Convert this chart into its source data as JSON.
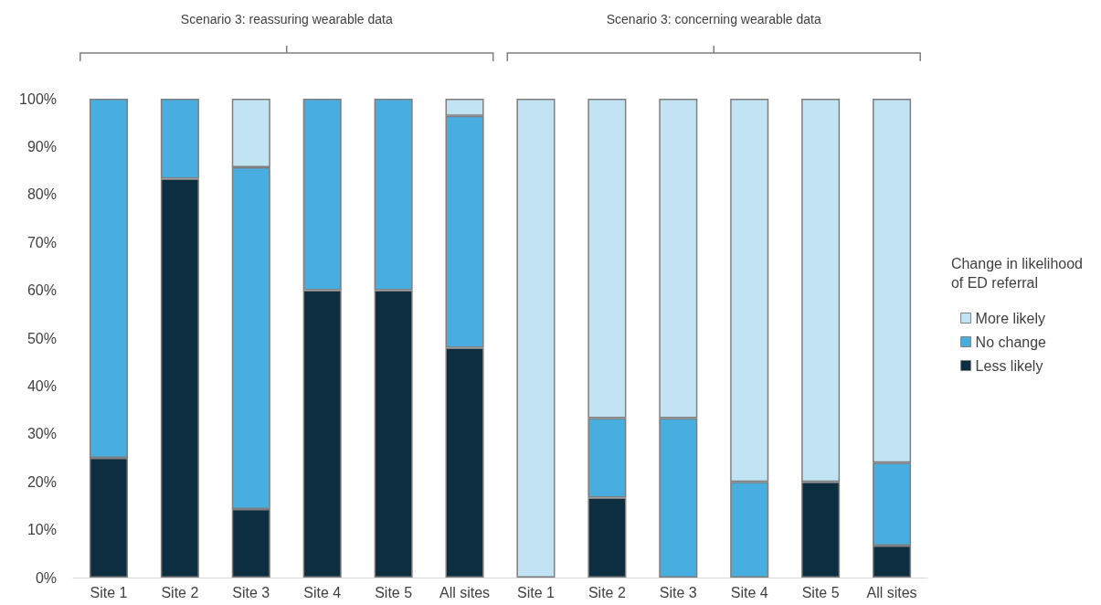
{
  "chart_data": {
    "type": "bar",
    "stacked": true,
    "categories": [
      "Site 1",
      "Site 2",
      "Site 3",
      "Site 4",
      "Site 5",
      "All sites",
      "Site 1",
      "Site 2",
      "Site 3",
      "Site 4",
      "Site 5",
      "All sites"
    ],
    "series": [
      {
        "name": "Less likely",
        "color": "#0d2d40",
        "values": [
          25,
          83.3,
          14.3,
          60,
          60,
          48,
          0,
          16.7,
          0,
          0,
          20,
          6.7
        ]
      },
      {
        "name": "No change",
        "color": "#48aee0",
        "values": [
          75,
          16.7,
          71.4,
          40,
          40,
          48.4,
          0,
          16.6,
          33.3,
          20,
          0,
          17.3
        ]
      },
      {
        "name": "More likely",
        "color": "#c2e3f4",
        "values": [
          0,
          0,
          14.3,
          0,
          0,
          3.6,
          100,
          66.7,
          66.7,
          80,
          80,
          76
        ]
      }
    ],
    "ylim": [
      0,
      100
    ],
    "yticks": [
      {
        "value": 0,
        "label": "0%"
      },
      {
        "value": 10,
        "label": "10%"
      },
      {
        "value": 20,
        "label": "20%"
      },
      {
        "value": 30,
        "label": "30%"
      },
      {
        "value": 40,
        "label": "40%"
      },
      {
        "value": 50,
        "label": "50%"
      },
      {
        "value": 60,
        "label": "60%"
      },
      {
        "value": 70,
        "label": "70%"
      },
      {
        "value": 80,
        "label": "80%"
      },
      {
        "value": 90,
        "label": "90%"
      },
      {
        "value": 100,
        "label": "100%"
      }
    ],
    "grid": false,
    "legend": "right",
    "legend_title": "Change in likelihood of ED referral",
    "annotations": [
      "Scenario 3: reassuring wearable data",
      "Scenario 3: concerning wearable data"
    ]
  }
}
